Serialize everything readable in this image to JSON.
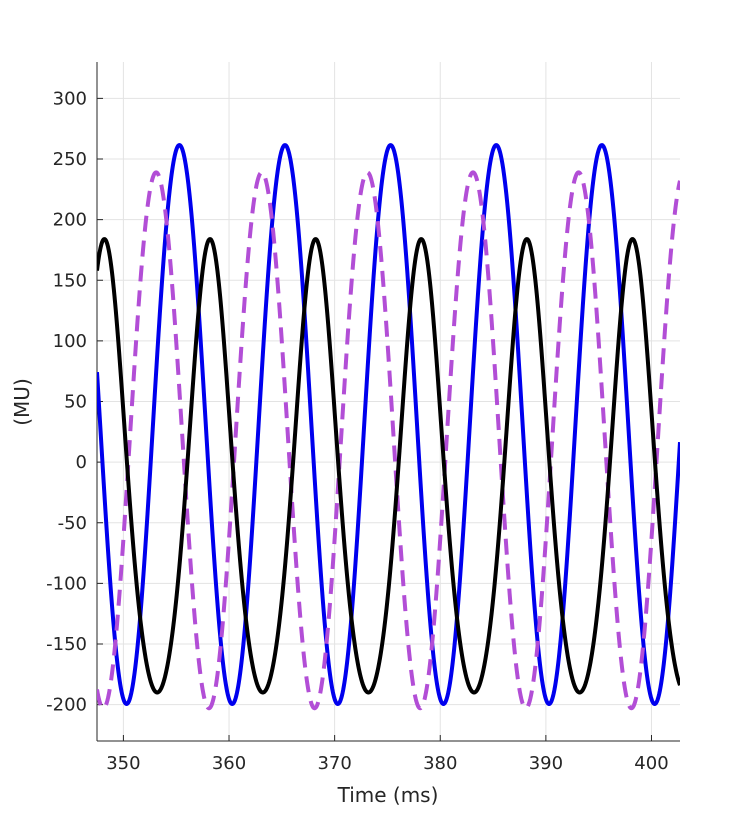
{
  "chart_data": {
    "type": "line",
    "title": "",
    "xlabel": "Time (ms)",
    "ylabel": "(MU)",
    "xlim": [
      347.5,
      402.7
    ],
    "ylim": [
      -230,
      330
    ],
    "xticks": [
      350,
      360,
      370,
      380,
      390,
      400
    ],
    "xtick_labels": [
      "350",
      "360",
      "370",
      "380",
      "390",
      "400"
    ],
    "yticks": [
      -200,
      -150,
      -100,
      -50,
      0,
      50,
      100,
      150,
      200,
      250,
      300
    ],
    "ytick_labels": [
      "-200",
      "-150",
      "-100",
      "-50",
      "0",
      "50",
      "100",
      "150",
      "200",
      "250",
      "300"
    ],
    "grid": true,
    "series": [
      {
        "style": "solid",
        "color": "#0000ee",
        "waveform": {
          "period_ms": 10.0,
          "offset": 31,
          "amplitude": 230.5,
          "peak_time_ms": 355.3,
          "sharpness": 1.0
        }
      },
      {
        "style": "dashed",
        "color": "#b24ed6",
        "waveform": {
          "period_ms": 10.0,
          "offset": 18,
          "amplitude": 221,
          "peak_time_ms": 353.1,
          "sharpness": 1.0
        }
      },
      {
        "style": "solid",
        "color": "#000000",
        "waveform": {
          "period_ms": 10.0,
          "offset": -3,
          "amplitude": 187,
          "peak_time_ms": 358.2,
          "sharpness": 2.4
        }
      }
    ]
  }
}
